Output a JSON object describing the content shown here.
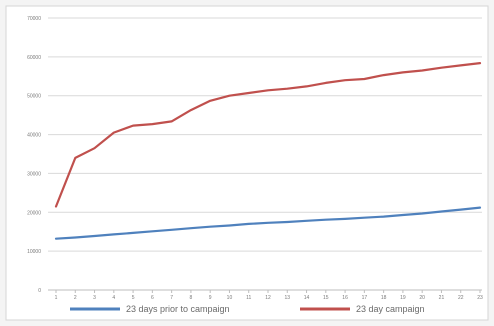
{
  "chart_data": {
    "type": "line",
    "title": "",
    "xlabel": "",
    "ylabel": "",
    "categories": [
      "1",
      "2",
      "3",
      "4",
      "5",
      "6",
      "7",
      "8",
      "9",
      "10",
      "11",
      "12",
      "13",
      "14",
      "15",
      "16",
      "17",
      "18",
      "19",
      "20",
      "21",
      "22",
      "23"
    ],
    "y_ticks": [
      "0",
      "10000",
      "20000",
      "30000",
      "40000",
      "50000",
      "60000",
      "70000"
    ],
    "ylim": [
      0,
      70000
    ],
    "grid": true,
    "legend_position": "bottom",
    "series": [
      {
        "name": "23 days prior to campaign",
        "color": "#4f81bd",
        "values": [
          13200,
          13500,
          13900,
          14300,
          14700,
          15100,
          15500,
          15900,
          16300,
          16600,
          17000,
          17300,
          17500,
          17800,
          18100,
          18300,
          18600,
          18900,
          19300,
          19700,
          20200,
          20700,
          21200
        ]
      },
      {
        "name": "23 day campaign",
        "color": "#c0504d",
        "values": [
          21500,
          34000,
          36500,
          40500,
          42300,
          42700,
          43400,
          46300,
          48700,
          50000,
          50700,
          51400,
          51800,
          52400,
          53300,
          54000,
          54300,
          55300,
          56000,
          56500,
          57200,
          57800,
          58400
        ]
      }
    ]
  }
}
